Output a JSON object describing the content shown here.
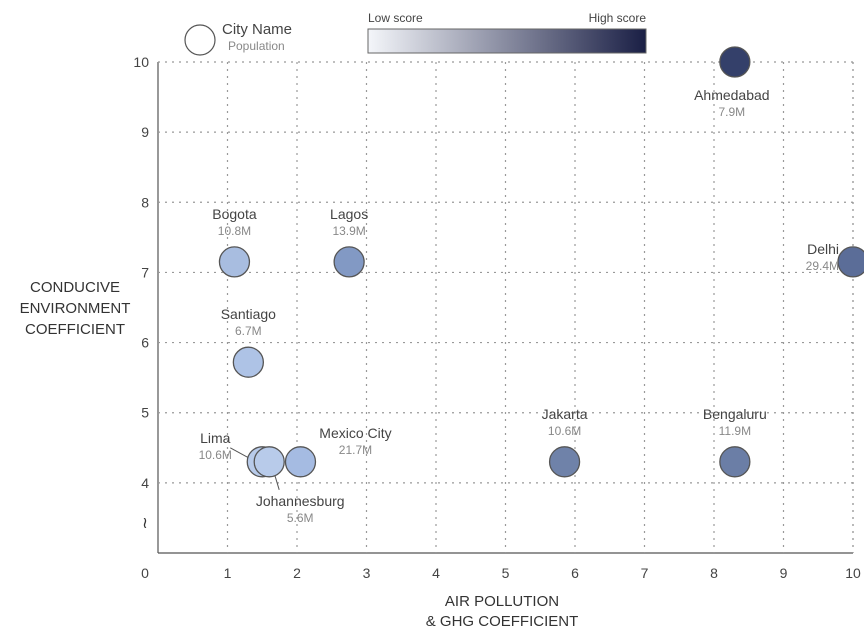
{
  "legend": {
    "marker_label": "City Name",
    "marker_sublabel": "Population",
    "low_label": "Low score",
    "high_label": "High score",
    "low_color": "#f4f6fa",
    "high_color": "#1a1f45"
  },
  "chart_data": {
    "type": "scatter",
    "xlabel": [
      "AIR POLLUTION",
      "& GHG COEFFICIENT"
    ],
    "ylabel": [
      "CONDUCIVE",
      "ENVIRONMENT",
      "COEFFICIENT"
    ],
    "xlim": [
      0,
      10
    ],
    "ylim": [
      3,
      10
    ],
    "axis_break_y": "≀",
    "grid": true,
    "grid_style": "dotted",
    "x_ticks": [
      0,
      1,
      2,
      3,
      4,
      5,
      6,
      7,
      8,
      9,
      10
    ],
    "y_ticks": [
      4,
      5,
      6,
      7,
      8,
      9,
      10
    ],
    "legend_position": "top-left",
    "points": [
      {
        "name": "Ahmedabad",
        "population": "7.9M",
        "x": 8.3,
        "y": 10.0,
        "color": "#34406a"
      },
      {
        "name": "Bogota",
        "population": "10.8M",
        "x": 1.1,
        "y": 7.15,
        "color": "#a8bde0"
      },
      {
        "name": "Lagos",
        "population": "13.9M",
        "x": 2.75,
        "y": 7.15,
        "color": "#8299c4"
      },
      {
        "name": "Delhi",
        "population": "29.4M",
        "x": 10.0,
        "y": 7.15,
        "color": "#5b6d98"
      },
      {
        "name": "Santiago",
        "population": "6.7M",
        "x": 1.3,
        "y": 5.72,
        "color": "#aec3e6"
      },
      {
        "name": "Lima",
        "population": "10.6M",
        "x": 1.5,
        "y": 4.3,
        "color": "#b8cbea"
      },
      {
        "name": "Johannesburg",
        "population": "5.6M",
        "x": 1.6,
        "y": 4.3,
        "color": "#b8cbea"
      },
      {
        "name": "Mexico City",
        "population": "21.7M",
        "x": 2.05,
        "y": 4.3,
        "color": "#a5bbe2"
      },
      {
        "name": "Jakarta",
        "population": "10.6M",
        "x": 5.85,
        "y": 4.3,
        "color": "#6f82a9"
      },
      {
        "name": "Bengaluru",
        "population": "11.9M",
        "x": 8.3,
        "y": 4.3,
        "color": "#6b7ea6"
      }
    ]
  }
}
